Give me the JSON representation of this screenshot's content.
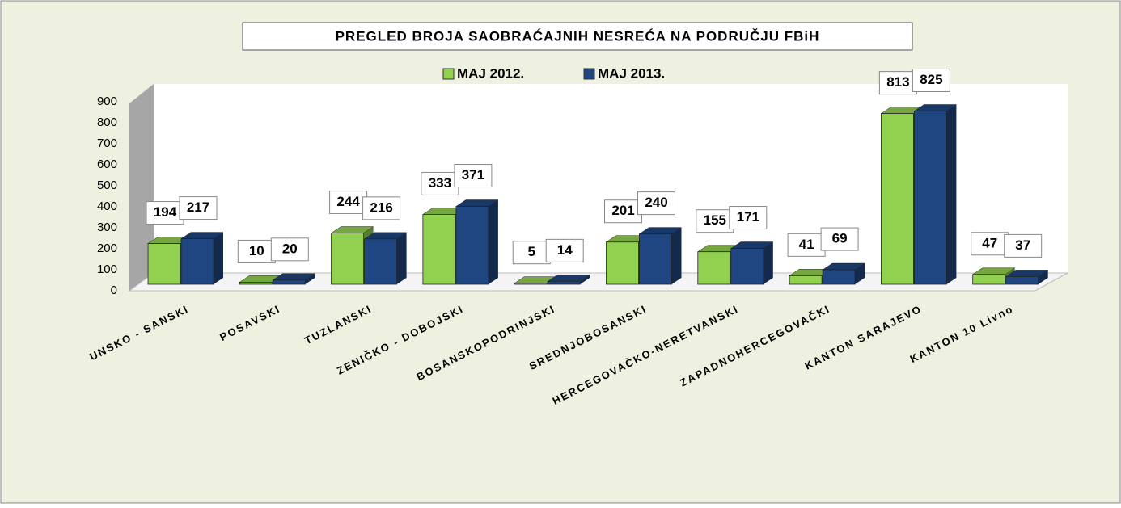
{
  "chart_data": {
    "type": "bar3d",
    "title": "PREGLED BROJA SAOBRAĆAJNIH NESREĆA NA PODRUČJU FBiH",
    "categories": [
      "UNSKO - SANSKI",
      "POSAVSKI",
      "TUZLANSKI",
      "ZENIČKO - DOBOJSKI",
      "BOSANSKOPODRINJSKI",
      "SREDNJOBOSANSKI",
      "HERCEGOVAČKO-NERETVANSKI",
      "ZAPADNOHERCEGOVAČKI",
      "KANTON SARAJEVO",
      "KANTON 10 Livno"
    ],
    "series": [
      {
        "name": "MAJ 2012.",
        "color": "#92d050",
        "values": [
          194,
          10,
          244,
          333,
          5,
          201,
          155,
          41,
          813,
          47
        ]
      },
      {
        "name": "MAJ 2013.",
        "color": "#1f4680",
        "values": [
          217,
          20,
          216,
          371,
          14,
          240,
          171,
          69,
          825,
          37
        ]
      }
    ],
    "ylim": [
      0,
      900
    ],
    "yticks": [
      0,
      100,
      200,
      300,
      400,
      500,
      600,
      700,
      800,
      900
    ],
    "legend": "top"
  }
}
